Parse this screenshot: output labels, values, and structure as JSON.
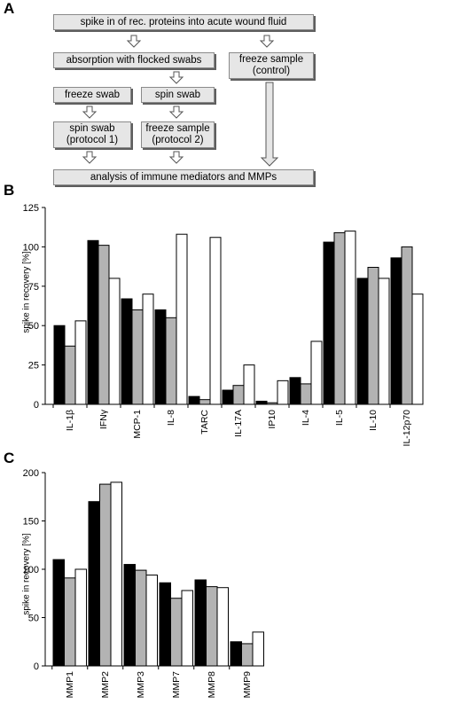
{
  "panels": {
    "a": "A",
    "b": "B",
    "c": "C"
  },
  "flow": {
    "spike": "spike in of rec. proteins into acute wound fluid",
    "absorption": "absorption with flocked swabs",
    "freeze_control": "freeze sample\n(control)",
    "freeze_swab": "freeze swab",
    "spin_swab": "spin swab",
    "spin_swab_p1": "spin swab\n(protocol 1)",
    "freeze_sample_p2": "freeze sample\n(protocol 2)",
    "analysis": "analysis of immune mediators and MMPs"
  },
  "colors": {
    "series1": "#000000",
    "series2": "#b3b3b3",
    "series3": "#ffffff"
  },
  "chart_data": [
    {
      "type": "bar",
      "ylabel": "spike in recovery [%]",
      "ylim": [
        0,
        125
      ],
      "yticks": [
        0,
        25,
        50,
        75,
        100,
        125
      ],
      "categories": [
        "IL-1β",
        "IFNγ",
        "MCP-1",
        "IL-8",
        "TARC",
        "IL-17A",
        "IP10",
        "IL-4",
        "IL-5",
        "IL-10",
        "IL-12p70"
      ],
      "series": [
        {
          "values": [
            50,
            104,
            67,
            60,
            5,
            9,
            2,
            17,
            103,
            80,
            93
          ]
        },
        {
          "values": [
            37,
            101,
            60,
            55,
            3,
            12,
            1,
            13,
            109,
            87,
            100
          ]
        },
        {
          "values": [
            53,
            80,
            70,
            108,
            106,
            25,
            15,
            40,
            110,
            80,
            70
          ]
        }
      ]
    },
    {
      "type": "bar",
      "ylabel": "spike in recovery [%]",
      "ylim": [
        0,
        200
      ],
      "yticks": [
        0,
        50,
        100,
        150,
        200
      ],
      "categories": [
        "MMP1",
        "MMP2",
        "MMP3",
        "MMP7",
        "MMP8",
        "MMP9"
      ],
      "series": [
        {
          "values": [
            110,
            170,
            105,
            86,
            89,
            25
          ]
        },
        {
          "values": [
            91,
            188,
            99,
            70,
            82,
            23
          ]
        },
        {
          "values": [
            100,
            190,
            94,
            78,
            81,
            35
          ]
        }
      ]
    }
  ]
}
